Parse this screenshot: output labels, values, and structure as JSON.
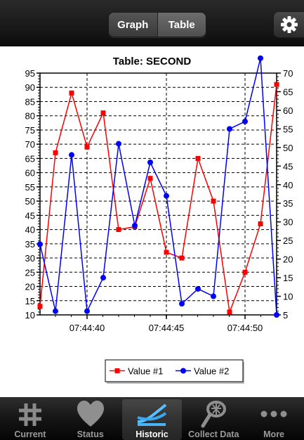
{
  "header": {
    "segments": [
      "Graph",
      "Table"
    ],
    "selected_segment": "Table",
    "settings_icon": "gear-icon"
  },
  "chart": {
    "title": "Table: SECOND"
  },
  "chart_data": {
    "type": "line",
    "title": "Table: SECOND",
    "xlabel": "",
    "ylabel": "",
    "x": [
      "07:44:37.5",
      "07:44:38",
      "07:44:39",
      "07:44:40",
      "07:44:41",
      "07:44:42",
      "07:44:43",
      "07:44:44",
      "07:44:45",
      "07:44:46",
      "07:44:47",
      "07:44:48",
      "07:44:49",
      "07:44:50",
      "07:44:51",
      "07:44:52"
    ],
    "x_ticks": [
      "07:44:40",
      "07:44:45",
      "07:44:50"
    ],
    "left_axis": {
      "min": 10,
      "max": 95,
      "ticks": [
        10,
        15,
        20,
        25,
        30,
        35,
        40,
        45,
        50,
        55,
        60,
        65,
        70,
        75,
        80,
        85,
        90,
        95
      ]
    },
    "right_axis": {
      "min": 5,
      "max": 70,
      "ticks": [
        5,
        10,
        15,
        20,
        25,
        30,
        35,
        40,
        45,
        50,
        55,
        60,
        65,
        70
      ]
    },
    "series": [
      {
        "name": "Value #1",
        "axis": "left",
        "color": "#ff0000",
        "marker": "square",
        "values": [
          13,
          67,
          88,
          69,
          81,
          40,
          41,
          58,
          32,
          30,
          65,
          50,
          11,
          25,
          42,
          91
        ]
      },
      {
        "name": "Value #2",
        "axis": "right",
        "color": "#0000ff",
        "marker": "circle",
        "values": [
          24,
          6,
          48,
          6,
          15,
          51,
          29,
          46,
          37,
          8,
          12,
          10,
          55,
          57,
          74,
          5
        ]
      }
    ],
    "grid": true,
    "legend": "bottom-center"
  },
  "tabs": [
    {
      "label": "Current",
      "icon": "hash-icon"
    },
    {
      "label": "Status",
      "icon": "heart-icon"
    },
    {
      "label": "Historic",
      "icon": "graph-lines-icon",
      "active": true
    },
    {
      "label": "Collect Data",
      "icon": "net-icon"
    },
    {
      "label": "More",
      "icon": "more-dots-icon"
    }
  ]
}
